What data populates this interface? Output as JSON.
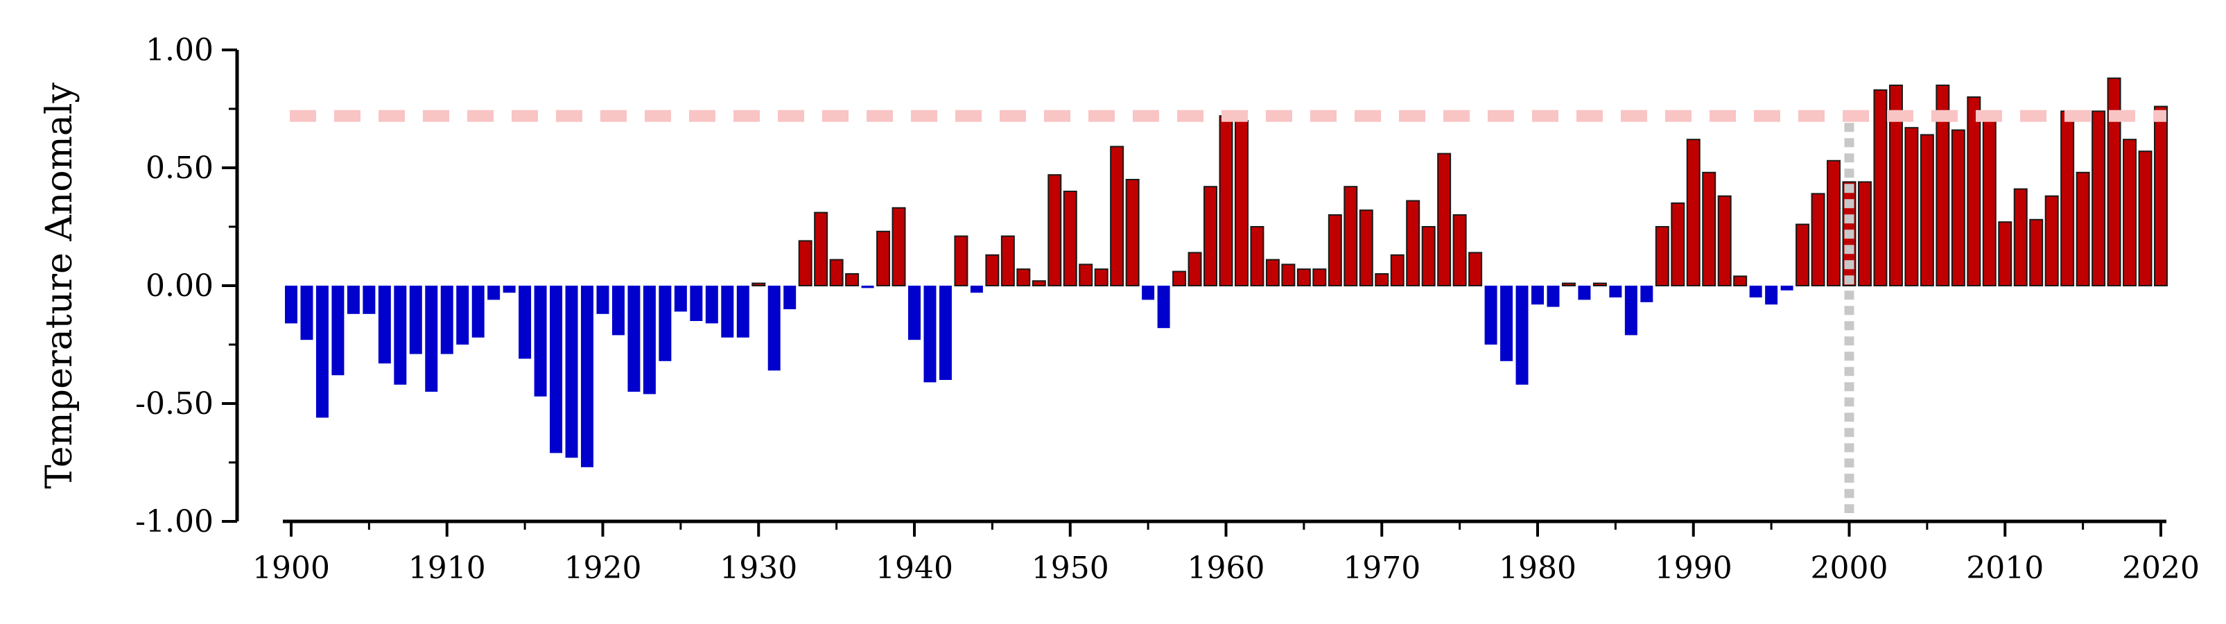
{
  "chart_data": {
    "type": "bar",
    "title": "",
    "xlabel": "",
    "ylabel": "Temperature Anomaly",
    "ylim": [
      -1.0,
      1.0
    ],
    "xlim": [
      1900,
      2020
    ],
    "yticks": [
      "-1.00",
      "-0.50",
      "0.00",
      "0.50",
      "1.00"
    ],
    "xticks": [
      "1900",
      "1910",
      "1920",
      "1930",
      "1940",
      "1950",
      "1960",
      "1970",
      "1980",
      "1990",
      "2000",
      "2010",
      "2020"
    ],
    "grid": false,
    "legend": "none",
    "colors": {
      "positive": "#c00000",
      "negative": "#0000cc",
      "reference_line": "#f9c4c4",
      "vertical_marker": "#c8c8c8"
    },
    "reference_line_y": 0.72,
    "vertical_marker_x": 2000,
    "x": [
      1900,
      1901,
      1902,
      1903,
      1904,
      1905,
      1906,
      1907,
      1908,
      1909,
      1910,
      1911,
      1912,
      1913,
      1914,
      1915,
      1916,
      1917,
      1918,
      1919,
      1920,
      1921,
      1922,
      1923,
      1924,
      1925,
      1926,
      1927,
      1928,
      1929,
      1930,
      1931,
      1932,
      1933,
      1934,
      1935,
      1936,
      1937,
      1938,
      1939,
      1940,
      1941,
      1942,
      1943,
      1944,
      1945,
      1946,
      1947,
      1948,
      1949,
      1950,
      1951,
      1952,
      1953,
      1954,
      1955,
      1956,
      1957,
      1958,
      1959,
      1960,
      1961,
      1962,
      1963,
      1964,
      1965,
      1966,
      1967,
      1968,
      1969,
      1970,
      1971,
      1972,
      1973,
      1974,
      1975,
      1976,
      1977,
      1978,
      1979,
      1980,
      1981,
      1982,
      1983,
      1984,
      1985,
      1986,
      1987,
      1988,
      1989,
      1990,
      1991,
      1992,
      1993,
      1994,
      1995,
      1996,
      1997,
      1998,
      1999,
      2000,
      2001,
      2002,
      2003,
      2004,
      2005,
      2006,
      2007,
      2008,
      2009,
      2010,
      2011,
      2012,
      2013,
      2014,
      2015,
      2016,
      2017,
      2018,
      2019,
      2020
    ],
    "values": [
      -0.16,
      -0.23,
      -0.56,
      -0.38,
      -0.12,
      -0.12,
      -0.33,
      -0.42,
      -0.29,
      -0.45,
      -0.29,
      -0.25,
      -0.22,
      -0.06,
      -0.03,
      -0.31,
      -0.47,
      -0.71,
      -0.73,
      -0.77,
      -0.12,
      -0.21,
      -0.45,
      -0.46,
      -0.32,
      -0.11,
      -0.15,
      -0.16,
      -0.22,
      -0.22,
      0.01,
      -0.36,
      -0.1,
      0.19,
      0.31,
      0.11,
      0.05,
      -0.01,
      0.23,
      0.33,
      -0.23,
      -0.41,
      -0.4,
      0.21,
      -0.03,
      0.13,
      0.21,
      0.07,
      0.02,
      0.47,
      0.4,
      0.09,
      0.07,
      0.59,
      0.45,
      -0.06,
      -0.18,
      0.06,
      0.14,
      0.42,
      0.72,
      0.7,
      0.25,
      0.11,
      0.09,
      0.07,
      0.07,
      0.3,
      0.42,
      0.32,
      0.05,
      0.13,
      0.36,
      0.25,
      0.56,
      0.3,
      0.14,
      -0.25,
      -0.32,
      -0.42,
      -0.08,
      -0.09,
      0.01,
      -0.06,
      0.01,
      -0.05,
      -0.21,
      -0.07,
      0.25,
      0.35,
      0.62,
      0.48,
      0.38,
      0.04,
      -0.05,
      -0.08,
      -0.02,
      0.26,
      0.39,
      0.53,
      0.44,
      0.44,
      0.83,
      0.85,
      0.67,
      0.64,
      0.85,
      0.66,
      0.8,
      0.71,
      0.27,
      0.41,
      0.28,
      0.38,
      0.74,
      0.48,
      0.74,
      0.88,
      0.62,
      0.57,
      0.76
    ]
  }
}
